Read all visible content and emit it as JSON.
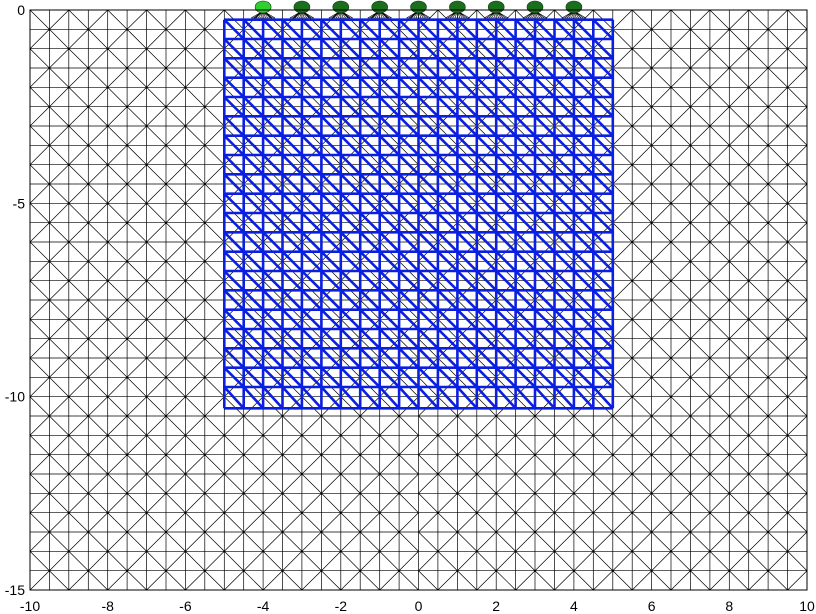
{
  "chart_data": {
    "type": "mesh",
    "title": "",
    "xlabel": "",
    "ylabel": "",
    "xlim": [
      -10,
      10
    ],
    "ylim": [
      -15,
      0
    ],
    "x_ticks": [
      -10,
      -8,
      -6,
      -4,
      -2,
      0,
      2,
      4,
      6,
      8,
      10
    ],
    "y_ticks": [
      0,
      -5,
      -10,
      -15
    ],
    "x_tick_labels": [
      "-10",
      "-8",
      "-6",
      "-4",
      "-2",
      "0",
      "2",
      "4",
      "6",
      "8",
      "10"
    ],
    "y_tick_labels": [
      "0",
      "-5",
      "-10",
      "-15"
    ],
    "background_mesh": {
      "x_range": [
        -10,
        10
      ],
      "y_range": [
        -15,
        0
      ],
      "nx": 40,
      "ny": 30,
      "color": "#000000"
    },
    "refined_region": {
      "x_range": [
        -5,
        5
      ],
      "y_range": [
        -10.3,
        -0.25
      ],
      "columns": [
        -5,
        -4.5,
        -4,
        -3.5,
        -3,
        -2.5,
        -2,
        -1.5,
        -1,
        -0.5,
        0,
        0.5,
        1,
        1.5,
        2,
        2.5,
        3,
        3.5,
        4,
        4.5,
        5
      ],
      "rows": [
        -0.25,
        -0.75,
        -1.25,
        -1.75,
        -2.25,
        -2.75,
        -3.25,
        -3.75,
        -4.25,
        -4.75,
        -5.25,
        -5.75,
        -6.25,
        -6.75,
        -7.25,
        -7.75,
        -8.25,
        -8.75,
        -9.25,
        -9.75,
        -10.3
      ],
      "color": "#0b1fe0"
    },
    "electrodes": {
      "x": [
        -4,
        -3,
        -2,
        -1,
        0,
        1,
        2,
        3,
        4
      ],
      "y": 0,
      "colors": [
        "#2fcf2f",
        "#1b6e1b",
        "#1b6e1b",
        "#1b6e1b",
        "#1b6e1b",
        "#1b6e1b",
        "#1b6e1b",
        "#1b6e1b",
        "#1b6e1b"
      ]
    }
  }
}
